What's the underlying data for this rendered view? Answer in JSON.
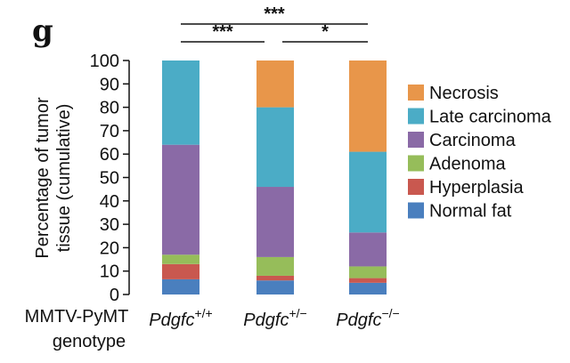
{
  "panel_label": "g",
  "chart_data": {
    "type": "bar",
    "stacked": true,
    "ylabel": [
      "Percentage of tumor",
      "tissue (cumulative)"
    ],
    "ylim": [
      0,
      100
    ],
    "yticks": [
      0,
      10,
      20,
      30,
      40,
      50,
      60,
      70,
      80,
      90,
      100
    ],
    "x_group_label": [
      "MMTV-PyMT",
      "genotype"
    ],
    "categories": [
      {
        "gene": "Pdgfc",
        "sup": "+/+"
      },
      {
        "gene": "Pdgfc",
        "sup": "+/−"
      },
      {
        "gene": "Pdgfc",
        "sup": "−/−"
      }
    ],
    "series": [
      {
        "name": "Normal fat",
        "color": "#4a7fbe",
        "values": [
          6.5,
          6,
          5
        ]
      },
      {
        "name": "Hyperplasia",
        "color": "#c9584f",
        "values": [
          6.5,
          2,
          2
        ]
      },
      {
        "name": "Adenoma",
        "color": "#96bd5a",
        "values": [
          4,
          8,
          5
        ]
      },
      {
        "name": "Carcinoma",
        "color": "#8a6aa6",
        "values": [
          47,
          30,
          14.5
        ]
      },
      {
        "name": "Late carcinoma",
        "color": "#4bacc6",
        "values": [
          36,
          34,
          34.5
        ]
      },
      {
        "name": "Necrosis",
        "color": "#e8964a",
        "values": [
          0,
          20,
          39
        ]
      }
    ],
    "legend_position": "right",
    "significance": [
      {
        "label": "***",
        "from": 0,
        "to": 2
      },
      {
        "label": "***",
        "from": 0,
        "to": 1
      },
      {
        "label": "*",
        "from": 1,
        "to": 2
      }
    ]
  }
}
